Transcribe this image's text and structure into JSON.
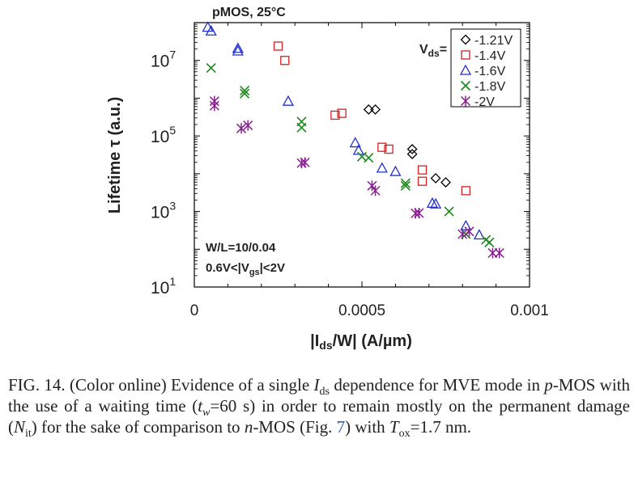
{
  "chart_data": {
    "type": "scatter",
    "title": "pMOS, 25°C",
    "xlabel_parts": [
      "|I",
      "ds",
      "/W| (A/µm)"
    ],
    "ylabel": "Lifetime τ (a.u.)",
    "xlim": [
      0,
      0.001
    ],
    "ylim_log10": [
      1,
      8
    ],
    "y_scale": "log",
    "x_ticks": [
      {
        "v": 0,
        "label": "0"
      },
      {
        "v": 0.0005,
        "label": "0.0005"
      },
      {
        "v": 0.001,
        "label": "0.001"
      }
    ],
    "y_ticks": [
      {
        "e": 1,
        "base": "10",
        "exp": "1"
      },
      {
        "e": 3,
        "base": "10",
        "exp": "3"
      },
      {
        "e": 5,
        "base": "10",
        "exp": "5"
      },
      {
        "e": 7,
        "base": "10",
        "exp": "7"
      }
    ],
    "legend_title_parts": [
      "V",
      "ds",
      "="
    ],
    "legend_position": "top-right",
    "annotations": [
      {
        "id": "wl",
        "parts": [
          "W/L=10/0.04"
        ]
      },
      {
        "id": "vgs",
        "parts": [
          "0.6V<|V",
          "gs",
          "|<2V"
        ]
      }
    ],
    "series": [
      {
        "name": "-1.21V",
        "marker": "diamond",
        "color": "#000000",
        "points": [
          [
            0.00052,
            5.7
          ],
          [
            0.00054,
            5.7
          ],
          [
            0.00065,
            4.65
          ],
          [
            0.00065,
            4.52
          ],
          [
            0.00072,
            3.88
          ],
          [
            0.00075,
            3.77
          ]
        ]
      },
      {
        "name": "-1.4V",
        "marker": "square",
        "color": "#d42020",
        "points": [
          [
            0.00025,
            7.38
          ],
          [
            0.00027,
            7.0
          ],
          [
            0.00042,
            5.55
          ],
          [
            0.00044,
            5.6
          ],
          [
            0.00056,
            4.7
          ],
          [
            0.00058,
            4.65
          ],
          [
            0.00068,
            4.1
          ],
          [
            0.00068,
            3.8
          ],
          [
            0.00081,
            3.55
          ]
        ]
      },
      {
        "name": "-1.6V",
        "marker": "triangle",
        "color": "#2030d0",
        "points": [
          [
            4e-05,
            7.88
          ],
          [
            5e-05,
            7.78
          ],
          [
            0.00013,
            7.32
          ],
          [
            0.00013,
            7.25
          ],
          [
            0.00028,
            5.92
          ],
          [
            0.00048,
            4.82
          ],
          [
            0.00049,
            4.62
          ],
          [
            0.00056,
            4.15
          ],
          [
            0.0006,
            4.06
          ],
          [
            0.00071,
            3.22
          ],
          [
            0.00072,
            3.2
          ],
          [
            0.00081,
            2.62
          ],
          [
            0.00085,
            2.38
          ]
        ]
      },
      {
        "name": "-1.8V",
        "marker": "x",
        "color": "#1a8a1a",
        "points": [
          [
            5e-05,
            6.8
          ],
          [
            0.00015,
            6.2
          ],
          [
            0.00015,
            6.12
          ],
          [
            0.00032,
            5.38
          ],
          [
            0.00032,
            5.22
          ],
          [
            0.0005,
            4.45
          ],
          [
            0.00052,
            4.42
          ],
          [
            0.00063,
            3.75
          ],
          [
            0.00063,
            3.68
          ],
          [
            0.00076,
            3.0
          ],
          [
            0.00081,
            2.4
          ],
          [
            0.00087,
            2.25
          ],
          [
            0.00088,
            2.18
          ]
        ]
      },
      {
        "name": "-2V",
        "marker": "star",
        "color": "#8a2090",
        "points": [
          [
            6e-05,
            5.92
          ],
          [
            6e-05,
            5.8
          ],
          [
            0.00014,
            5.2
          ],
          [
            0.00016,
            5.28
          ],
          [
            0.00032,
            4.28
          ],
          [
            0.00033,
            4.3
          ],
          [
            0.00053,
            3.68
          ],
          [
            0.00054,
            3.55
          ],
          [
            0.00066,
            2.95
          ],
          [
            0.00067,
            2.96
          ],
          [
            0.0008,
            2.4
          ],
          [
            0.00082,
            2.47
          ],
          [
            0.00089,
            1.9
          ],
          [
            0.00091,
            1.9
          ]
        ]
      }
    ]
  },
  "caption": {
    "p1": "FIG. 14. (Color online) Evidence of a single ",
    "ids_i": "I",
    "ids_sub": "ds",
    "p2": " dependence for MVE mode in ",
    "pmos_i": "p",
    "p3": "-MOS with the use of a waiting time (",
    "tw_i": "t",
    "tw_sub": "w",
    "p4": "=60 s) in order to remain mostly on the permanent damage (",
    "nit_i": "N",
    "nit_sub": "it",
    "p5": ") for the sake of comparison to ",
    "nmos_i": "n",
    "p6": "-MOS (Fig. ",
    "fig_link": "7",
    "p7": ") with ",
    "tox_i": "T",
    "tox_sub": "ox",
    "p8": "=1.7 nm."
  }
}
